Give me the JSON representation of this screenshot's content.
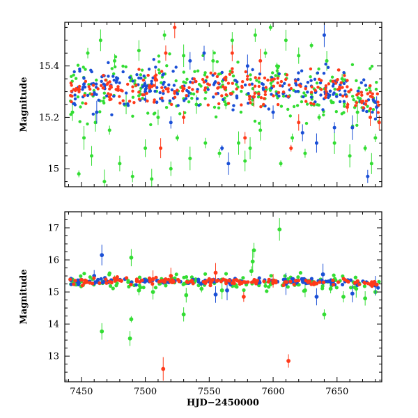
{
  "chart_data": [
    {
      "type": "scatter",
      "title": "",
      "xlabel": "",
      "ylabel": "Magnitude",
      "xlim": [
        7437,
        7685
      ],
      "ylim": [
        15.57,
        14.93
      ],
      "y_inverted": true,
      "x_ticks": [
        7450,
        7500,
        7550,
        7600,
        7650
      ],
      "x_tick_labels": [
        "",
        "",
        "",
        "",
        ""
      ],
      "y_ticks": [
        15.0,
        15.2,
        15.4
      ],
      "y_tick_labels": [
        "15",
        "15.2",
        "15.4"
      ],
      "series": [
        {
          "color": "#33dd33",
          "baseline": 15.31,
          "spread": 0.06,
          "points": [
            {
              "x": 7443,
              "y": 15.22
            },
            {
              "x": 7448,
              "y": 14.98
            },
            {
              "x": 7452,
              "y": 15.12
            },
            {
              "x": 7455,
              "y": 15.45
            },
            {
              "x": 7458,
              "y": 15.05
            },
            {
              "x": 7461,
              "y": 15.18
            },
            {
              "x": 7465,
              "y": 15.5
            },
            {
              "x": 7468,
              "y": 14.95
            },
            {
              "x": 7472,
              "y": 15.15
            },
            {
              "x": 7476,
              "y": 15.42
            },
            {
              "x": 7480,
              "y": 15.02
            },
            {
              "x": 7485,
              "y": 15.25
            },
            {
              "x": 7490,
              "y": 14.97
            },
            {
              "x": 7495,
              "y": 15.46
            },
            {
              "x": 7500,
              "y": 15.08
            },
            {
              "x": 7505,
              "y": 14.96
            },
            {
              "x": 7510,
              "y": 15.2
            },
            {
              "x": 7515,
              "y": 15.52
            },
            {
              "x": 7520,
              "y": 15.0
            },
            {
              "x": 7525,
              "y": 15.12
            },
            {
              "x": 7530,
              "y": 15.44
            },
            {
              "x": 7535,
              "y": 15.04
            },
            {
              "x": 7540,
              "y": 15.25
            },
            {
              "x": 7547,
              "y": 15.1
            },
            {
              "x": 7553,
              "y": 15.42
            },
            {
              "x": 7558,
              "y": 15.06
            },
            {
              "x": 7563,
              "y": 15.25
            },
            {
              "x": 7568,
              "y": 15.5
            },
            {
              "x": 7573,
              "y": 15.1
            },
            {
              "x": 7578,
              "y": 15.03
            },
            {
              "x": 7582,
              "y": 15.08
            },
            {
              "x": 7586,
              "y": 15.52
            },
            {
              "x": 7590,
              "y": 15.15
            },
            {
              "x": 7594,
              "y": 15.45
            },
            {
              "x": 7598,
              "y": 15.55
            },
            {
              "x": 7603,
              "y": 15.4
            },
            {
              "x": 7606,
              "y": 15.02
            },
            {
              "x": 7610,
              "y": 15.5
            },
            {
              "x": 7615,
              "y": 15.12
            },
            {
              "x": 7620,
              "y": 15.44
            },
            {
              "x": 7625,
              "y": 15.06
            },
            {
              "x": 7630,
              "y": 15.48
            },
            {
              "x": 7636,
              "y": 15.2
            },
            {
              "x": 7642,
              "y": 15.42
            },
            {
              "x": 7648,
              "y": 15.1
            },
            {
              "x": 7654,
              "y": 15.35
            },
            {
              "x": 7660,
              "y": 15.05
            },
            {
              "x": 7666,
              "y": 15.22
            },
            {
              "x": 7672,
              "y": 15.08
            },
            {
              "x": 7677,
              "y": 15.02
            },
            {
              "x": 7680,
              "y": 15.12
            }
          ]
        },
        {
          "color": "#1a4fd6",
          "baseline": 15.31,
          "spread": 0.04,
          "points": [
            {
              "x": 7462,
              "y": 15.22
            },
            {
              "x": 7500,
              "y": 15.3
            },
            {
              "x": 7520,
              "y": 15.18
            },
            {
              "x": 7535,
              "y": 15.42
            },
            {
              "x": 7546,
              "y": 15.45
            },
            {
              "x": 7560,
              "y": 15.08
            },
            {
              "x": 7565,
              "y": 15.02
            },
            {
              "x": 7580,
              "y": 15.4
            },
            {
              "x": 7600,
              "y": 15.22
            },
            {
              "x": 7623,
              "y": 15.14
            },
            {
              "x": 7634,
              "y": 15.1
            },
            {
              "x": 7640,
              "y": 15.52
            },
            {
              "x": 7648,
              "y": 15.16
            },
            {
              "x": 7662,
              "y": 15.16
            },
            {
              "x": 7674,
              "y": 14.97
            },
            {
              "x": 7681,
              "y": 15.24
            }
          ]
        },
        {
          "color": "#ff3a1a",
          "baseline": 15.31,
          "spread": 0.035,
          "points": [
            {
              "x": 7508,
              "y": 15.35
            },
            {
              "x": 7512,
              "y": 15.08
            },
            {
              "x": 7516,
              "y": 15.45
            },
            {
              "x": 7523,
              "y": 15.55
            },
            {
              "x": 7530,
              "y": 15.2
            },
            {
              "x": 7568,
              "y": 15.45
            },
            {
              "x": 7578,
              "y": 15.12
            },
            {
              "x": 7585,
              "y": 15.28
            },
            {
              "x": 7590,
              "y": 15.42
            },
            {
              "x": 7614,
              "y": 15.08
            },
            {
              "x": 7620,
              "y": 15.18
            },
            {
              "x": 7658,
              "y": 15.24
            },
            {
              "x": 7676,
              "y": 15.2
            },
            {
              "x": 7683,
              "y": 15.18
            }
          ]
        }
      ]
    },
    {
      "type": "scatter",
      "title": "",
      "xlabel": "HJD−2450000",
      "ylabel": "Magnitude",
      "xlim": [
        7437,
        7685
      ],
      "ylim": [
        17.5,
        12.2
      ],
      "y_inverted": true,
      "x_ticks": [
        7450,
        7500,
        7550,
        7600,
        7650
      ],
      "x_tick_labels": [
        "7450",
        "7500",
        "7550",
        "7600",
        "7650"
      ],
      "y_ticks": [
        13,
        14,
        15,
        16,
        17
      ],
      "y_tick_labels": [
        "13",
        "14",
        "15",
        "16",
        "17"
      ],
      "series": [
        {
          "color": "#33dd33",
          "baseline": 15.33,
          "spread": 0.12,
          "points": [
            {
              "x": 7466,
              "y": 13.77
            },
            {
              "x": 7476,
              "y": 15.4
            },
            {
              "x": 7488,
              "y": 13.55
            },
            {
              "x": 7489,
              "y": 14.15
            },
            {
              "x": 7489,
              "y": 16.07
            },
            {
              "x": 7495,
              "y": 15.05
            },
            {
              "x": 7506,
              "y": 15.0
            },
            {
              "x": 7530,
              "y": 14.3
            },
            {
              "x": 7532,
              "y": 14.9
            },
            {
              "x": 7544,
              "y": 15.1
            },
            {
              "x": 7560,
              "y": 15.05
            },
            {
              "x": 7583,
              "y": 15.65
            },
            {
              "x": 7584,
              "y": 15.95
            },
            {
              "x": 7585,
              "y": 16.3
            },
            {
              "x": 7605,
              "y": 16.95
            },
            {
              "x": 7625,
              "y": 15.05
            },
            {
              "x": 7640,
              "y": 14.3
            },
            {
              "x": 7645,
              "y": 15.1
            },
            {
              "x": 7655,
              "y": 14.85
            },
            {
              "x": 7665,
              "y": 15.1
            },
            {
              "x": 7672,
              "y": 14.8
            },
            {
              "x": 7680,
              "y": 15.0
            }
          ]
        },
        {
          "color": "#1a4fd6",
          "baseline": 15.33,
          "spread": 0.05,
          "points": [
            {
              "x": 7460,
              "y": 15.5
            },
            {
              "x": 7466,
              "y": 16.15
            },
            {
              "x": 7555,
              "y": 14.92
            },
            {
              "x": 7564,
              "y": 15.05
            },
            {
              "x": 7610,
              "y": 15.25
            },
            {
              "x": 7634,
              "y": 14.85
            },
            {
              "x": 7639,
              "y": 15.55
            },
            {
              "x": 7662,
              "y": 14.95
            },
            {
              "x": 7680,
              "y": 15.2
            }
          ]
        },
        {
          "color": "#ff3a1a",
          "baseline": 15.33,
          "spread": 0.05,
          "points": [
            {
              "x": 7514,
              "y": 12.6
            },
            {
              "x": 7612,
              "y": 12.85
            },
            {
              "x": 7506,
              "y": 15.4
            },
            {
              "x": 7520,
              "y": 15.5
            },
            {
              "x": 7555,
              "y": 15.6
            },
            {
              "x": 7577,
              "y": 14.85
            },
            {
              "x": 7600,
              "y": 15.35
            }
          ]
        }
      ]
    }
  ]
}
